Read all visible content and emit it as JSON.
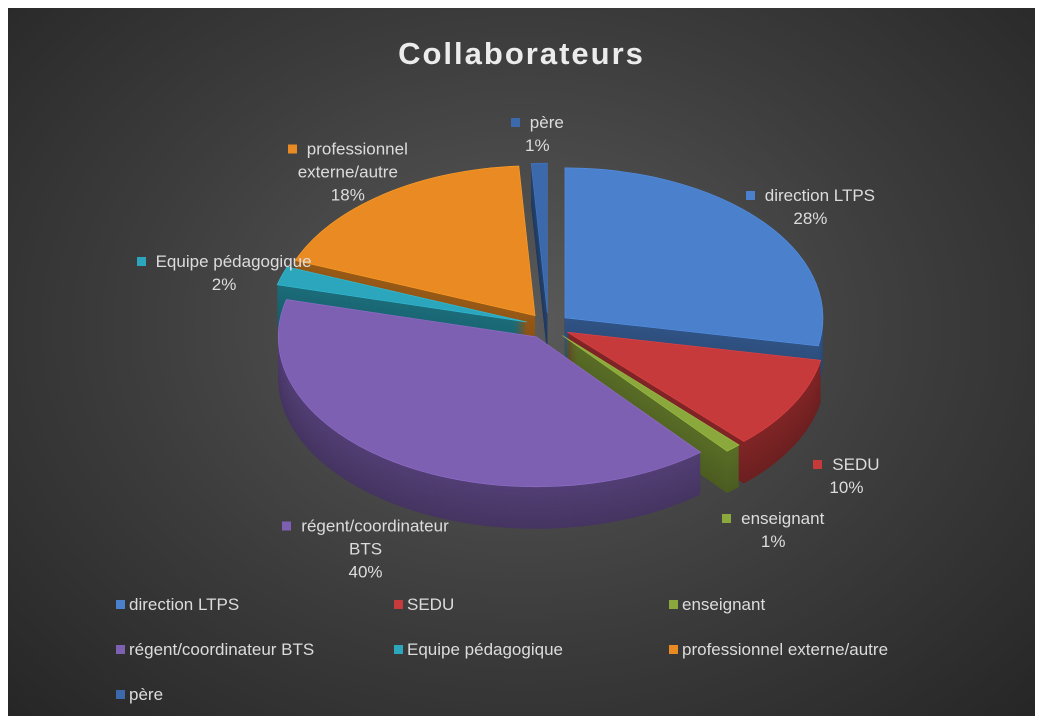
{
  "chart_data": {
    "type": "pie3d",
    "title": "Collaborateurs",
    "categories": [
      "direction LTPS",
      "SEDU",
      "enseignant",
      "régent/coordinateur BTS",
      "Equipe pédagogique",
      "professionnel externe/autre",
      "père"
    ],
    "values": [
      28,
      10,
      1,
      40,
      2,
      18,
      1
    ],
    "value_labels": [
      "28%",
      "10%",
      "1%",
      "40%",
      "2%",
      "18%",
      "1%"
    ],
    "colors": [
      "#4a80cc",
      "#c63a3c",
      "#8aa83c",
      "#7e60b2",
      "#2ba6bc",
      "#ea8a22",
      "#3b69ab"
    ],
    "legend": "bottom"
  }
}
